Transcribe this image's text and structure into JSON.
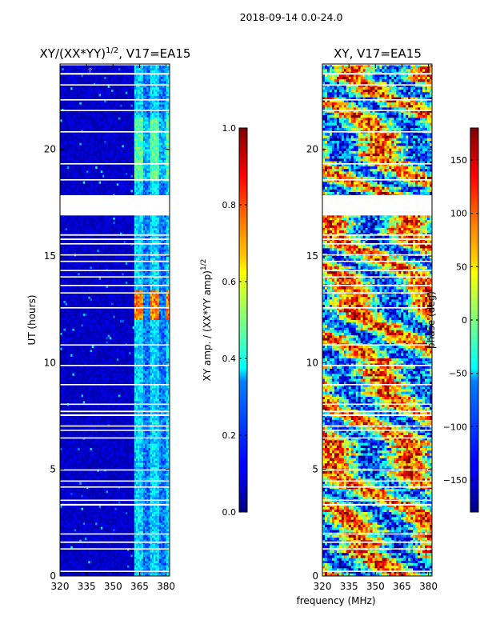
{
  "suptitle": "2018-09-14 0.0-24.0",
  "chart_data": [
    {
      "type": "heatmap",
      "title": "XY/(XX*YY)",
      "title_exponent": "1/2",
      "title_suffix": ", V17=EA15",
      "xlabel": "",
      "ylabel": "UT (hours)",
      "xlim": [
        320,
        382
      ],
      "ylim": [
        0,
        24
      ],
      "x_ticks": [
        320,
        335,
        350,
        365,
        380
      ],
      "y_ticks": [
        0,
        5,
        10,
        15,
        20
      ],
      "colorbar": {
        "label": "XY amp. / (XX*YY amp)",
        "label_exponent": "1/2",
        "range": [
          0.0,
          1.0
        ],
        "ticks": [
          "0.0",
          "0.2",
          "0.4",
          "0.6",
          "0.8",
          "1.0"
        ],
        "tick_values": [
          0.0,
          0.2,
          0.4,
          0.6,
          0.8,
          1.0
        ]
      },
      "description_values": {
        "background": 0.05,
        "band_365_382": 0.25,
        "peak_hours": [
          12.0,
          13.4
        ],
        "peak_value": 0.85
      }
    },
    {
      "type": "heatmap",
      "title": "XY, V17=EA15",
      "xlabel": "frequency (MHz)",
      "ylabel": "",
      "xlim": [
        320,
        382
      ],
      "ylim": [
        0,
        24
      ],
      "x_ticks": [
        320,
        335,
        350,
        365,
        380
      ],
      "y_ticks": [
        0,
        5,
        10,
        15,
        20
      ],
      "colorbar": {
        "label": "phase (deg)",
        "range": [
          -180,
          180
        ],
        "ticks": [
          "150",
          "100",
          "50",
          "0",
          "−50",
          "−100",
          "−150"
        ],
        "tick_values": [
          150,
          100,
          50,
          0,
          -50,
          -100,
          -150
        ]
      }
    }
  ],
  "gaps_hours": [
    [
      0.2,
      0.25
    ],
    [
      1.25,
      1.3
    ],
    [
      1.55,
      1.62
    ],
    [
      1.95,
      2.0
    ],
    [
      3.3,
      3.38
    ],
    [
      3.52,
      3.58
    ],
    [
      4.15,
      4.2
    ],
    [
      4.42,
      4.48
    ],
    [
      4.95,
      5.0
    ],
    [
      6.45,
      6.5
    ],
    [
      6.8,
      6.86
    ],
    [
      7.0,
      7.06
    ],
    [
      7.5,
      7.58
    ],
    [
      7.68,
      7.75
    ],
    [
      8.02,
      8.08
    ],
    [
      8.95,
      9.0
    ],
    [
      9.85,
      9.9
    ],
    [
      10.8,
      10.86
    ],
    [
      12.55,
      12.6
    ],
    [
      13.25,
      13.3
    ],
    [
      13.6,
      13.65
    ],
    [
      14.0,
      14.05
    ],
    [
      14.3,
      14.35
    ],
    [
      14.72,
      14.78
    ],
    [
      15.02,
      15.08
    ],
    [
      15.55,
      15.6
    ],
    [
      15.75,
      15.82
    ],
    [
      15.95,
      16.02
    ],
    [
      16.9,
      17.85
    ],
    [
      18.55,
      18.6
    ],
    [
      19.3,
      19.35
    ],
    [
      20.8,
      20.85
    ],
    [
      21.8,
      21.85
    ],
    [
      22.3,
      22.35
    ],
    [
      23.0,
      23.05
    ],
    [
      23.5,
      23.58
    ],
    [
      23.95,
      24.0
    ]
  ],
  "palette": {
    "jet": [
      "#00007f",
      "#0000ff",
      "#007fff",
      "#00ffff",
      "#7fff7f",
      "#ffff00",
      "#ff7f00",
      "#ff0000",
      "#7f0000"
    ]
  }
}
